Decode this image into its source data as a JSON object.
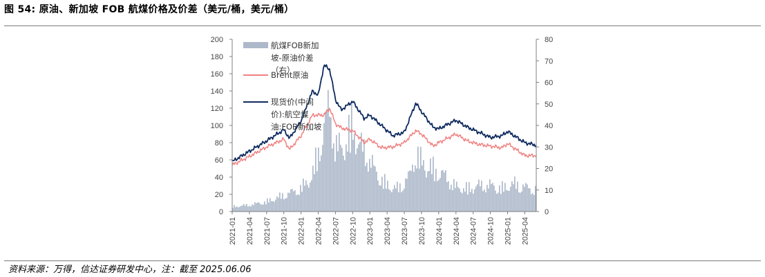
{
  "header": {
    "title": "图 54:  原油、新加坡 FOB 航煤价格及价差（美元/桶，美元/桶）"
  },
  "footer": {
    "source": "资料来源：万得，信达证券研发中心，注：截至 2025.06.06"
  },
  "colors": {
    "spread": "#adb9ca",
    "brent": "#f08080",
    "jetfuel": "#0d2a5e",
    "axis": "#7f7f7f"
  },
  "chart_data": {
    "type": "bar+line",
    "title": "",
    "left_axis": {
      "min": 0,
      "max": 200,
      "step": 20,
      "ticks": [
        "0",
        "20",
        "40",
        "60",
        "80",
        "100",
        "120",
        "140",
        "160",
        "180",
        "200"
      ]
    },
    "right_axis": {
      "min": 0,
      "max": 80,
      "step": 10,
      "ticks": [
        "0",
        "10",
        "20",
        "30",
        "40",
        "50",
        "60",
        "70",
        "80"
      ]
    },
    "x_ticks": [
      "2021-01",
      "2021-04",
      "2021-07",
      "2021-10",
      "2022-01",
      "2022-04",
      "2022-07",
      "2022-10",
      "2023-01",
      "2023-04",
      "2023-07",
      "2023-10",
      "2024-01",
      "2024-04",
      "2024-07",
      "2024-10",
      "2025-01",
      "2025-04"
    ],
    "x_range": [
      "2021-01",
      "2025-06"
    ],
    "legend": [
      {
        "label": "航煤FOB新加坡-原油价差（右）",
        "kind": "bar"
      },
      {
        "label": "Brent原油",
        "kind": "line"
      },
      {
        "label": "现货价(中间价):航空煤油:FOB新加坡",
        "kind": "line"
      }
    ],
    "series": [
      {
        "name": "航煤FOB新加坡-原油价差（右）",
        "axis": "right",
        "type": "bar",
        "x": [
          "2021-01",
          "2021-04",
          "2021-07",
          "2021-10",
          "2022-01",
          "2022-03",
          "2022-05",
          "2022-06",
          "2022-07",
          "2022-09",
          "2022-10",
          "2022-11",
          "2023-01",
          "2023-02",
          "2023-04",
          "2023-06",
          "2023-08",
          "2023-09",
          "2023-10",
          "2023-12",
          "2024-02",
          "2024-04",
          "2024-06",
          "2024-08",
          "2024-10",
          "2024-12",
          "2025-02",
          "2025-04",
          "2025-06"
        ],
        "values": [
          3,
          4,
          6,
          10,
          14,
          22,
          50,
          66,
          38,
          42,
          54,
          42,
          32,
          24,
          16,
          14,
          22,
          36,
          30,
          26,
          22,
          15,
          14,
          16,
          16,
          14,
          17,
          15,
          13
        ]
      },
      {
        "name": "Brent原油",
        "axis": "left",
        "type": "line",
        "x": [
          "2021-01",
          "2021-04",
          "2021-07",
          "2021-10",
          "2021-11",
          "2022-01",
          "2022-03",
          "2022-05",
          "2022-06",
          "2022-07",
          "2022-08",
          "2022-10",
          "2022-12",
          "2023-01",
          "2023-03",
          "2023-05",
          "2023-07",
          "2023-09",
          "2023-10",
          "2023-12",
          "2024-01",
          "2024-04",
          "2024-06",
          "2024-08",
          "2024-10",
          "2024-12",
          "2025-01",
          "2025-04",
          "2025-06"
        ],
        "values": [
          54,
          64,
          75,
          84,
          72,
          88,
          112,
          112,
          120,
          102,
          97,
          94,
          80,
          84,
          74,
          75,
          80,
          94,
          90,
          76,
          80,
          90,
          82,
          78,
          76,
          74,
          79,
          65,
          65
        ]
      },
      {
        "name": "现货价(中间价):航空煤油:FOB新加坡",
        "axis": "left",
        "type": "line",
        "x": [
          "2021-01",
          "2021-04",
          "2021-07",
          "2021-10",
          "2021-11",
          "2022-01",
          "2022-03",
          "2022-04",
          "2022-05",
          "2022-06",
          "2022-07",
          "2022-08",
          "2022-10",
          "2022-12",
          "2023-01",
          "2023-03",
          "2023-05",
          "2023-07",
          "2023-09",
          "2023-10",
          "2023-12",
          "2024-01",
          "2024-04",
          "2024-06",
          "2024-08",
          "2024-10",
          "2024-12",
          "2025-01",
          "2025-04",
          "2025-06"
        ],
        "values": [
          58,
          70,
          82,
          95,
          85,
          105,
          140,
          135,
          170,
          165,
          130,
          118,
          128,
          108,
          112,
          100,
          88,
          92,
          126,
          116,
          98,
          96,
          106,
          98,
          92,
          86,
          88,
          93,
          80,
          77
        ]
      }
    ]
  }
}
